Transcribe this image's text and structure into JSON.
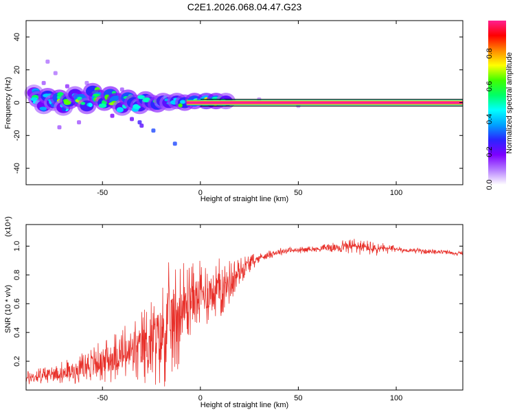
{
  "title": "C2E1.2026.068.04.47.G23",
  "colors": {
    "snr_line": "#e8302a",
    "frame": "#000000",
    "background": "#ffffff",
    "colormap": [
      "#ffffff",
      "#b57cff",
      "#7d00ff",
      "#2b24ff",
      "#00a0ff",
      "#00ffff",
      "#00ff66",
      "#40ff00",
      "#ffff00",
      "#ff8800",
      "#ff0000",
      "#ff2090"
    ]
  },
  "chart_data": [
    {
      "type": "heatmap",
      "name": "spectrogram",
      "xlabel": "Height of straight line (km)",
      "ylabel": "Frequency (Hz)",
      "xlim": [
        -89,
        134
      ],
      "ylim": [
        -50,
        50
      ],
      "xticks": [
        -50,
        0,
        50,
        100
      ],
      "xtick_labels": [
        "-50",
        "0",
        "50",
        "100"
      ],
      "yticks": [
        -40,
        -20,
        0,
        20,
        40
      ],
      "ytick_labels": [
        "-40",
        "-20",
        "0",
        "20",
        "40"
      ],
      "colorbar": {
        "label": "Normalized spectral amplitude",
        "range": [
          0,
          1
        ],
        "ticks": [
          0.0,
          0.2,
          0.4,
          0.6,
          0.8
        ],
        "tick_labels": [
          "0.0",
          "0.2",
          "0.4",
          "0.6",
          "0.8"
        ]
      },
      "steady_tone": {
        "x_start": -7,
        "x_end": 134,
        "frequency": 0,
        "amplitude": 1.0
      },
      "signal_blobs": [
        {
          "x": -85,
          "y": 6,
          "a": 0.3
        },
        {
          "x": -83,
          "y": 2,
          "a": 0.45
        },
        {
          "x": -80,
          "y": -2,
          "a": 0.35
        },
        {
          "x": -78,
          "y": 4,
          "a": 0.5
        },
        {
          "x": -75,
          "y": 0,
          "a": 0.4
        },
        {
          "x": -72,
          "y": 3,
          "a": 0.55
        },
        {
          "x": -70,
          "y": -3,
          "a": 0.35
        },
        {
          "x": -67,
          "y": 1,
          "a": 0.5
        },
        {
          "x": -64,
          "y": 5,
          "a": 0.4
        },
        {
          "x": -61,
          "y": 2,
          "a": 0.6
        },
        {
          "x": -58,
          "y": -2,
          "a": 0.45
        },
        {
          "x": -55,
          "y": 7,
          "a": 0.5
        },
        {
          "x": -52,
          "y": 3,
          "a": 0.65
        },
        {
          "x": -49,
          "y": 0,
          "a": 0.5
        },
        {
          "x": -46,
          "y": 5,
          "a": 0.55
        },
        {
          "x": -43,
          "y": 1,
          "a": 0.6
        },
        {
          "x": -40,
          "y": -3,
          "a": 0.4
        },
        {
          "x": -37,
          "y": 3,
          "a": 0.55
        },
        {
          "x": -34,
          "y": 0,
          "a": 0.5
        },
        {
          "x": -31,
          "y": -2,
          "a": 0.45
        },
        {
          "x": -28,
          "y": 2,
          "a": 0.5
        },
        {
          "x": -25,
          "y": 0,
          "a": 0.45
        },
        {
          "x": -22,
          "y": -1,
          "a": 0.5
        },
        {
          "x": -19,
          "y": 1,
          "a": 0.45
        },
        {
          "x": -16,
          "y": 0,
          "a": 0.4
        },
        {
          "x": -12,
          "y": 1,
          "a": 0.45
        },
        {
          "x": -8,
          "y": 0,
          "a": 0.5
        },
        {
          "x": -3,
          "y": 1,
          "a": 0.55
        },
        {
          "x": 3,
          "y": 1,
          "a": 0.7
        },
        {
          "x": 8,
          "y": 1,
          "a": 0.6
        },
        {
          "x": 13,
          "y": 1,
          "a": 0.4
        }
      ],
      "scatter_noise": [
        {
          "x": -80,
          "y": 12,
          "a": 0.12
        },
        {
          "x": -78,
          "y": 25,
          "a": 0.1
        },
        {
          "x": -74,
          "y": 18,
          "a": 0.1
        },
        {
          "x": -72,
          "y": -15,
          "a": 0.12
        },
        {
          "x": -68,
          "y": 10,
          "a": 0.15
        },
        {
          "x": -62,
          "y": -12,
          "a": 0.12
        },
        {
          "x": -58,
          "y": 12,
          "a": 0.1
        },
        {
          "x": -45,
          "y": -8,
          "a": 0.18
        },
        {
          "x": -40,
          "y": 8,
          "a": 0.12
        },
        {
          "x": -35,
          "y": -10,
          "a": 0.2
        },
        {
          "x": -31,
          "y": -12,
          "a": 0.25
        },
        {
          "x": -30,
          "y": -14,
          "a": 0.22
        },
        {
          "x": -24,
          "y": -17,
          "a": 0.3
        },
        {
          "x": -13,
          "y": -25,
          "a": 0.3
        },
        {
          "x": 23,
          "y": 0,
          "a": 0.1
        },
        {
          "x": 30,
          "y": 2,
          "a": 0.08
        },
        {
          "x": 50,
          "y": -2,
          "a": 0.08
        },
        {
          "x": 77,
          "y": 0,
          "a": 0.1
        },
        {
          "x": 95,
          "y": 0,
          "a": 0.08
        }
      ]
    },
    {
      "type": "line",
      "name": "snr",
      "xlabel": "Height of straight line (km)",
      "ylabel": "SNR (10 * v/v)",
      "scale_label": "(x10⁴)",
      "xlim": [
        -89,
        134
      ],
      "ylim": [
        0,
        1.15
      ],
      "xticks": [
        -50,
        0,
        50,
        100
      ],
      "xtick_labels": [
        "-50",
        "0",
        "50",
        "100"
      ],
      "yticks": [
        0.2,
        0.4,
        0.6,
        0.8,
        1.0
      ],
      "ytick_labels": [
        "0.2",
        "0.4",
        "0.6",
        "0.8",
        "1.0"
      ],
      "series": [
        {
          "name": "SNR",
          "x": [
            -89,
            -85,
            -80,
            -75,
            -70,
            -65,
            -60,
            -55,
            -50,
            -45,
            -40,
            -35,
            -30,
            -25,
            -20,
            -17,
            -15,
            -12,
            -10,
            -7,
            -5,
            -3,
            0,
            3,
            5,
            8,
            10,
            12,
            15,
            18,
            20,
            23,
            25,
            28,
            30,
            35,
            40,
            45,
            50,
            55,
            60,
            65,
            70,
            75,
            78,
            80,
            82,
            85,
            88,
            90,
            95,
            100,
            105,
            110,
            115,
            120,
            125,
            130,
            134
          ],
          "y": [
            0.08,
            0.09,
            0.1,
            0.11,
            0.12,
            0.13,
            0.16,
            0.18,
            0.2,
            0.22,
            0.24,
            0.26,
            0.3,
            0.33,
            0.38,
            0.45,
            0.48,
            0.52,
            0.55,
            0.6,
            0.63,
            0.65,
            0.66,
            0.67,
            0.68,
            0.7,
            0.71,
            0.72,
            0.75,
            0.79,
            0.82,
            0.86,
            0.88,
            0.9,
            0.92,
            0.94,
            0.96,
            0.97,
            0.97,
            0.98,
            0.98,
            0.99,
            0.99,
            1.0,
            1.0,
            1.0,
            0.99,
            0.99,
            0.98,
            0.98,
            0.98,
            0.98,
            0.97,
            0.97,
            0.96,
            0.96,
            0.96,
            0.95,
            0.95
          ]
        }
      ],
      "noise_amplitude": [
        {
          "x": -89,
          "a": 0.05
        },
        {
          "x": -60,
          "a": 0.1
        },
        {
          "x": -40,
          "a": 0.2
        },
        {
          "x": -25,
          "a": 0.3
        },
        {
          "x": -15,
          "a": 0.45
        },
        {
          "x": -5,
          "a": 0.25
        },
        {
          "x": 10,
          "a": 0.22
        },
        {
          "x": 20,
          "a": 0.1
        },
        {
          "x": 30,
          "a": 0.03
        },
        {
          "x": 60,
          "a": 0.02
        },
        {
          "x": 78,
          "a": 0.06
        },
        {
          "x": 90,
          "a": 0.05
        },
        {
          "x": 100,
          "a": 0.02
        },
        {
          "x": 134,
          "a": 0.015
        }
      ]
    }
  ]
}
